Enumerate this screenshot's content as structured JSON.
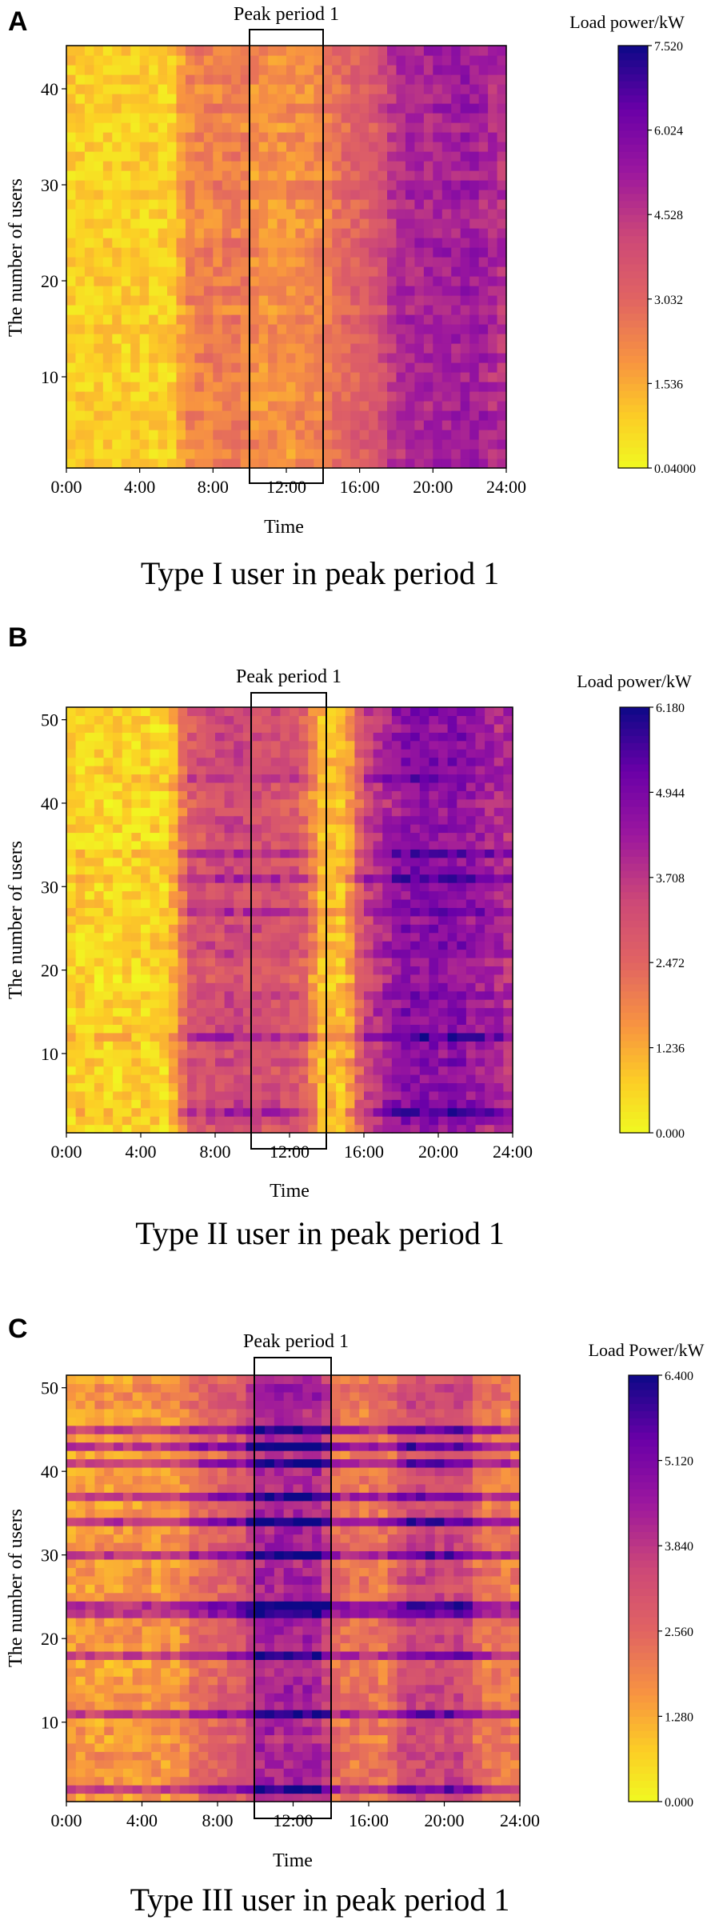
{
  "chart_data": [
    {
      "type": "heatmap",
      "panel_label": "A",
      "title": "Type I user in peak period 1",
      "xlabel": "Time",
      "ylabel": "The number of users",
      "x_ticks": [
        "0:00",
        "4:00",
        "8:00",
        "12:00",
        "16:00",
        "20:00",
        "24:00"
      ],
      "x_range_hours": [
        0,
        24
      ],
      "y_ticks": [
        "10",
        "20",
        "30",
        "40"
      ],
      "y_range": [
        0.5,
        44.5
      ],
      "n_users": 44,
      "n_time_slots": 48,
      "highlight": {
        "label": "Peak period 1",
        "start_hour": 10,
        "end_hour": 14
      },
      "colorbar": {
        "title": "Load power/kW",
        "ticks": [
          "0.04000",
          "1.536",
          "3.032",
          "4.528",
          "6.024",
          "7.520"
        ],
        "min": 0.04,
        "max": 7.52
      },
      "profile": [
        [
          0,
          0.9
        ],
        [
          6,
          0.9
        ],
        [
          6.5,
          2.3
        ],
        [
          9.5,
          2.5
        ],
        [
          10.5,
          2.0
        ],
        [
          14,
          2.2
        ],
        [
          15,
          3.0
        ],
        [
          17,
          3.6
        ],
        [
          18,
          4.8
        ],
        [
          22,
          5.3
        ],
        [
          24,
          4.6
        ]
      ]
    },
    {
      "type": "heatmap",
      "panel_label": "B",
      "title": "Type II user in peak period 1",
      "xlabel": "Time",
      "ylabel": "The number of users",
      "x_ticks": [
        "0:00",
        "4:00",
        "8:00",
        "12:00",
        "16:00",
        "20:00",
        "24:00"
      ],
      "x_range_hours": [
        0,
        24
      ],
      "y_ticks": [
        "10",
        "20",
        "30",
        "40",
        "50"
      ],
      "y_range": [
        0.5,
        51.5
      ],
      "n_users": 51,
      "n_time_slots": 48,
      "highlight": {
        "label": "Peak period 1",
        "start_hour": 10,
        "end_hour": 14
      },
      "colorbar": {
        "title": "Load power/kW",
        "ticks": [
          "0.000",
          "1.236",
          "2.472",
          "3.708",
          "4.944",
          "6.180"
        ],
        "min": 0.0,
        "max": 6.18
      },
      "profile": [
        [
          0,
          0.6
        ],
        [
          5.5,
          0.6
        ],
        [
          6.5,
          2.8
        ],
        [
          9,
          3.3
        ],
        [
          10,
          3.1
        ],
        [
          12,
          3.0
        ],
        [
          13,
          2.4
        ],
        [
          13.5,
          1.0
        ],
        [
          15,
          0.9
        ],
        [
          16,
          3.2
        ],
        [
          18,
          4.6
        ],
        [
          21,
          4.7
        ],
        [
          24,
          3.8
        ]
      ]
    },
    {
      "type": "heatmap",
      "panel_label": "C",
      "title": "Type III user in peak period 1",
      "xlabel": "Time",
      "ylabel": "The number of users",
      "x_ticks": [
        "0:00",
        "4:00",
        "8:00",
        "12:00",
        "16:00",
        "20:00",
        "24:00"
      ],
      "x_range_hours": [
        0,
        24
      ],
      "y_ticks": [
        "10",
        "20",
        "30",
        "40",
        "50"
      ],
      "y_range": [
        0.5,
        51.5
      ],
      "n_users": 51,
      "n_time_slots": 48,
      "highlight": {
        "label": "Peak period 1",
        "start_hour": 10,
        "end_hour": 14
      },
      "colorbar": {
        "title": "Load Power/kW",
        "ticks": [
          "0.000",
          "1.280",
          "2.560",
          "3.840",
          "5.120",
          "6.400"
        ],
        "min": 0.0,
        "max": 6.4
      },
      "profile": [
        [
          0,
          1.5
        ],
        [
          6,
          1.6
        ],
        [
          7,
          2.4
        ],
        [
          9.5,
          3.0
        ],
        [
          10.2,
          4.2
        ],
        [
          13.5,
          4.3
        ],
        [
          14.3,
          2.2
        ],
        [
          17,
          2.2
        ],
        [
          18,
          3.4
        ],
        [
          21,
          3.4
        ],
        [
          22,
          2.2
        ],
        [
          24,
          2.0
        ]
      ]
    }
  ]
}
